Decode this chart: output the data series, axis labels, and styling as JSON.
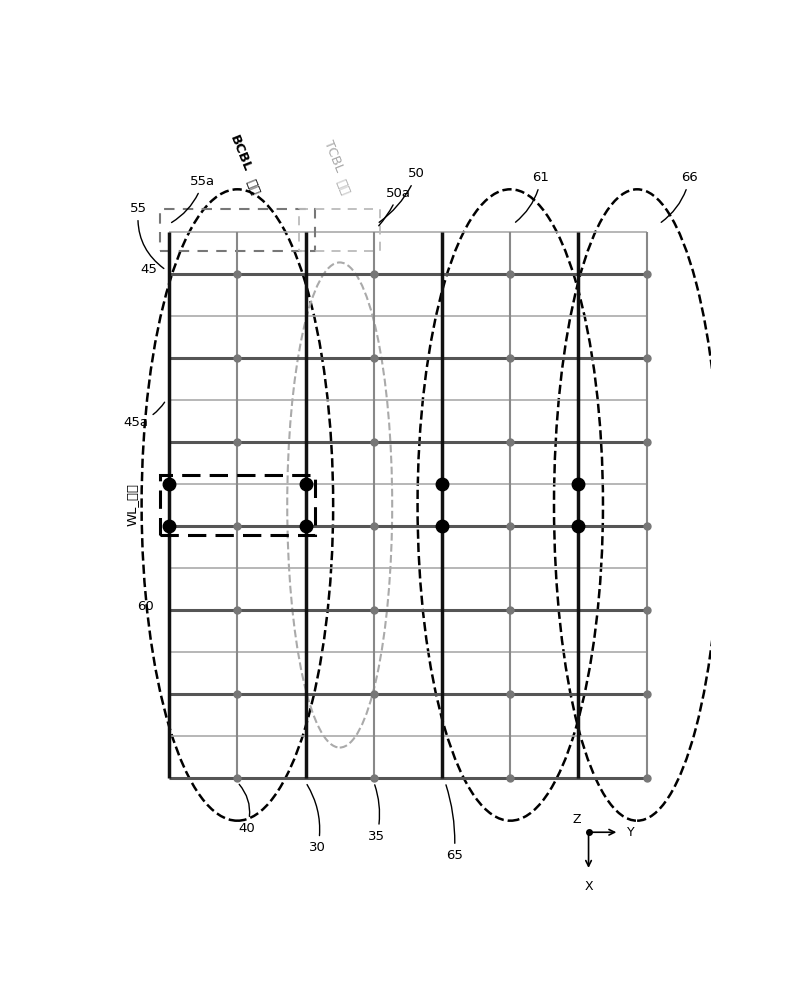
{
  "fig_width": 7.9,
  "fig_height": 10.0,
  "bg_color": "#ffffff",
  "num_vcols": 8,
  "num_hrows": 14,
  "col_colors": [
    "#111111",
    "#888888",
    "#111111",
    "#888888",
    "#111111",
    "#888888",
    "#111111",
    "#888888"
  ],
  "col_lws": [
    2.5,
    1.5,
    2.5,
    1.5,
    2.5,
    1.5,
    2.5,
    1.5
  ],
  "dark_row_color": "#555555",
  "light_row_color": "#aaaaaa",
  "dark_row_lw": 2.2,
  "light_row_lw": 1.2,
  "dot_color": "#777777",
  "black_dot_color": "#000000",
  "dot_size": 5,
  "black_dot_size": 9,
  "wl_row_indices": [
    6,
    7
  ],
  "black_dot_col_indices": [
    0,
    2,
    4,
    6
  ]
}
